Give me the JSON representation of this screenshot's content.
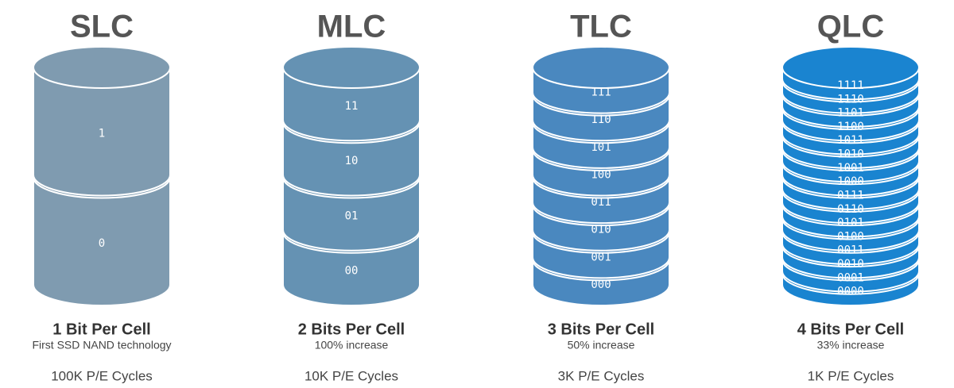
{
  "columns": [
    {
      "title": "SLC",
      "cells": [
        "1",
        "0"
      ],
      "heading": "1 Bit Per Cell",
      "description": "First SSD NAND technology",
      "cycles": "100K P/E Cycles"
    },
    {
      "title": "MLC",
      "cells": [
        "11",
        "10",
        "01",
        "00"
      ],
      "heading": "2 Bits Per Cell",
      "description": "100% increase",
      "cycles": "10K P/E Cycles"
    },
    {
      "title": "TLC",
      "cells": [
        "111",
        "110",
        "101",
        "100",
        "011",
        "010",
        "001",
        "000"
      ],
      "heading": "3 Bits Per Cell",
      "description": "50% increase",
      "cycles": "3K P/E Cycles"
    },
    {
      "title": "QLC",
      "cells": [
        "1111",
        "1110",
        "1101",
        "1100",
        "1011",
        "1010",
        "1001",
        "1000",
        "0111",
        "0110",
        "0101",
        "0100",
        "0011",
        "0010",
        "0001",
        "0000"
      ],
      "heading": "4 Bits Per Cell",
      "description": "33% increase",
      "cycles": "1K P/E Cycles"
    }
  ]
}
